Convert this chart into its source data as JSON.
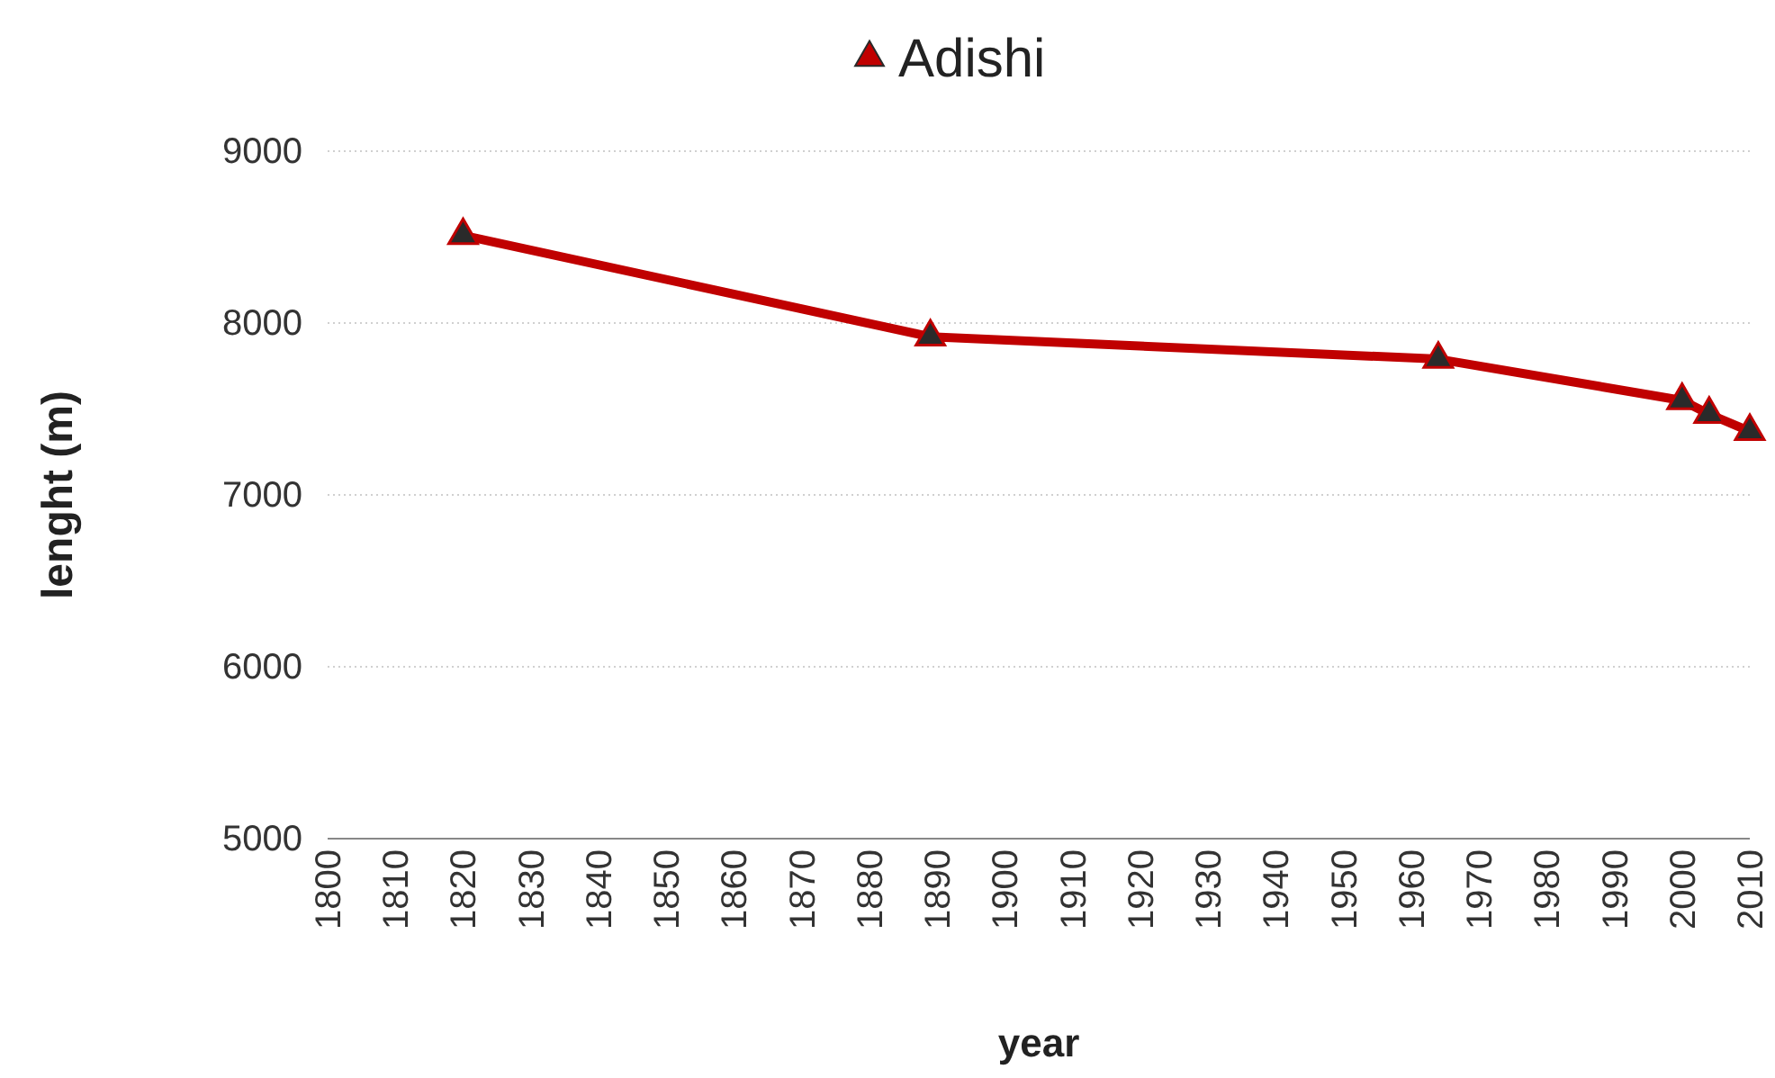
{
  "chart_data": {
    "type": "line",
    "xlabel": "year",
    "ylabel": "lenght (m)",
    "x": [
      1820,
      1889,
      1964,
      2000,
      2004,
      2010
    ],
    "series": [
      {
        "name": "Adishi",
        "color": "#c00000",
        "values": [
          8510,
          7920,
          7790,
          7550,
          7470,
          7370
        ]
      }
    ],
    "xlim": [
      1800,
      2010
    ],
    "xticks": [
      1800,
      1810,
      1820,
      1830,
      1840,
      1850,
      1860,
      1870,
      1880,
      1890,
      1900,
      1910,
      1920,
      1930,
      1940,
      1950,
      1960,
      1970,
      1980,
      1990,
      2000,
      2010
    ],
    "ylim": [
      5000,
      9000
    ],
    "yticks": [
      5000,
      6000,
      7000,
      8000,
      9000
    ],
    "grid": "y",
    "legend": "top",
    "marker": "triangle",
    "line_style": "solid"
  }
}
